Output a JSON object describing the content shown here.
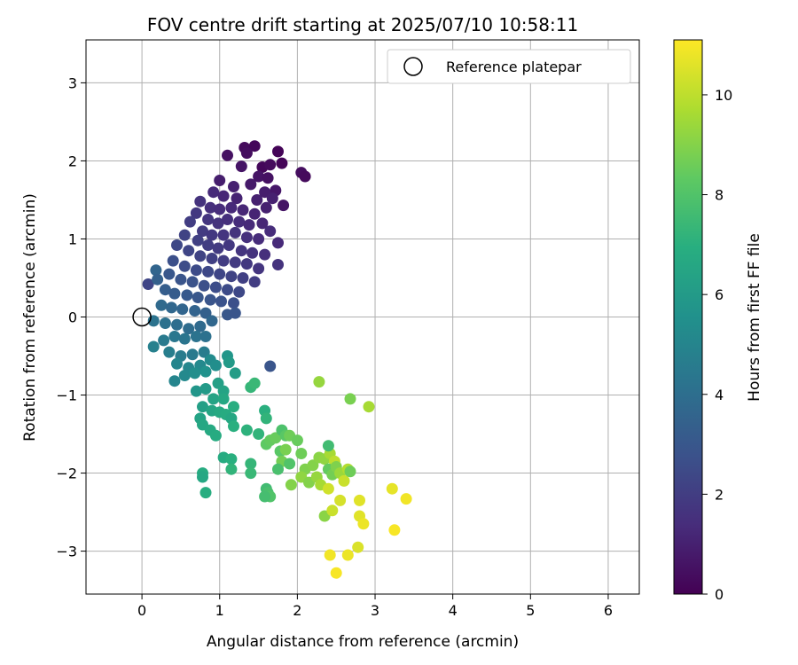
{
  "chart_data": {
    "type": "scatter",
    "title": "FOV centre drift starting at 2025/07/10 10:58:11",
    "xlabel": "Angular distance from reference (arcmin)",
    "ylabel": "Rotation from reference (arcmin)",
    "xlim": [
      -0.72,
      6.4
    ],
    "ylim": [
      -3.55,
      3.55
    ],
    "xticks": [
      "0",
      "1",
      "2",
      "3",
      "4",
      "5",
      "6"
    ],
    "yticks": [
      "3",
      "2",
      "1",
      "0",
      "−1",
      "−2",
      "−3"
    ],
    "grid": true,
    "colormap": "viridis",
    "colorbar": {
      "label": "Hours from first FF file",
      "range": [
        0,
        11.1
      ],
      "ticks": [
        "0",
        "2",
        "4",
        "6",
        "8",
        "10"
      ]
    },
    "legend": {
      "position": "top-right",
      "entries": [
        "Reference platepar"
      ]
    },
    "reference_point": {
      "x": 0,
      "y": 0
    },
    "points_xyc": [
      [
        1.32,
        2.17,
        0.3
      ],
      [
        1.45,
        2.19,
        0.2
      ],
      [
        1.75,
        2.12,
        0.1
      ],
      [
        1.55,
        1.92,
        0.2
      ],
      [
        1.65,
        1.95,
        0.3
      ],
      [
        1.8,
        1.97,
        0.1
      ],
      [
        2.05,
        1.85,
        0.4
      ],
      [
        2.1,
        1.8,
        0.3
      ],
      [
        1.1,
        2.07,
        0.5
      ],
      [
        1.28,
        1.93,
        0.6
      ],
      [
        1.35,
        2.1,
        0.4
      ],
      [
        1.5,
        1.8,
        0.6
      ],
      [
        1.62,
        1.78,
        0.5
      ],
      [
        1.72,
        1.62,
        0.7
      ],
      [
        1.82,
        1.43,
        0.6
      ],
      [
        1.0,
        1.75,
        0.9
      ],
      [
        1.18,
        1.67,
        1.0
      ],
      [
        1.4,
        1.7,
        0.8
      ],
      [
        1.58,
        1.6,
        0.9
      ],
      [
        1.68,
        1.52,
        1.0
      ],
      [
        0.92,
        1.6,
        1.3
      ],
      [
        1.05,
        1.55,
        1.2
      ],
      [
        1.22,
        1.52,
        1.1
      ],
      [
        1.48,
        1.5,
        1.0
      ],
      [
        0.75,
        1.48,
        1.6
      ],
      [
        0.88,
        1.4,
        1.5
      ],
      [
        1.0,
        1.38,
        1.4
      ],
      [
        1.15,
        1.4,
        1.3
      ],
      [
        1.3,
        1.37,
        1.2
      ],
      [
        1.45,
        1.32,
        1.1
      ],
      [
        1.6,
        1.4,
        1.0
      ],
      [
        0.7,
        1.33,
        1.8
      ],
      [
        0.85,
        1.25,
        1.7
      ],
      [
        0.98,
        1.2,
        1.6
      ],
      [
        1.1,
        1.25,
        1.5
      ],
      [
        1.25,
        1.22,
        1.4
      ],
      [
        1.38,
        1.18,
        1.3
      ],
      [
        1.55,
        1.2,
        1.2
      ],
      [
        1.65,
        1.1,
        1.4
      ],
      [
        0.62,
        1.22,
        2.0
      ],
      [
        0.78,
        1.1,
        1.9
      ],
      [
        0.9,
        1.05,
        1.8
      ],
      [
        1.05,
        1.05,
        1.7
      ],
      [
        1.2,
        1.08,
        1.6
      ],
      [
        1.35,
        1.02,
        1.5
      ],
      [
        1.5,
        1.0,
        1.4
      ],
      [
        1.75,
        0.95,
        1.3
      ],
      [
        0.55,
        1.05,
        2.2
      ],
      [
        0.72,
        0.98,
        2.1
      ],
      [
        0.85,
        0.92,
        2.0
      ],
      [
        0.98,
        0.88,
        1.9
      ],
      [
        1.12,
        0.92,
        1.8
      ],
      [
        1.28,
        0.85,
        1.7
      ],
      [
        1.42,
        0.82,
        1.6
      ],
      [
        1.58,
        0.8,
        1.5
      ],
      [
        0.45,
        0.92,
        2.4
      ],
      [
        0.6,
        0.85,
        2.3
      ],
      [
        0.75,
        0.78,
        2.2
      ],
      [
        0.9,
        0.75,
        2.1
      ],
      [
        1.05,
        0.72,
        2.0
      ],
      [
        1.2,
        0.7,
        1.9
      ],
      [
        1.35,
        0.68,
        1.8
      ],
      [
        1.5,
        0.62,
        1.7
      ],
      [
        1.75,
        0.67,
        1.6
      ],
      [
        0.4,
        0.72,
        2.7
      ],
      [
        0.55,
        0.65,
        2.6
      ],
      [
        0.7,
        0.6,
        2.5
      ],
      [
        0.85,
        0.58,
        2.4
      ],
      [
        1.0,
        0.55,
        2.3
      ],
      [
        1.15,
        0.52,
        2.2
      ],
      [
        1.3,
        0.5,
        2.1
      ],
      [
        1.45,
        0.45,
        2.0
      ],
      [
        0.35,
        0.55,
        3.0
      ],
      [
        0.5,
        0.48,
        2.9
      ],
      [
        0.65,
        0.45,
        2.8
      ],
      [
        0.8,
        0.4,
        2.7
      ],
      [
        0.95,
        0.38,
        2.6
      ],
      [
        1.1,
        0.35,
        2.5
      ],
      [
        1.25,
        0.32,
        2.4
      ],
      [
        0.08,
        0.42,
        2.3
      ],
      [
        0.18,
        0.6,
        3.6
      ],
      [
        0.2,
        0.48,
        3.4
      ],
      [
        0.3,
        0.35,
        3.3
      ],
      [
        0.42,
        0.3,
        3.2
      ],
      [
        0.58,
        0.28,
        3.1
      ],
      [
        0.72,
        0.25,
        3.0
      ],
      [
        0.88,
        0.22,
        2.9
      ],
      [
        1.02,
        0.2,
        2.8
      ],
      [
        1.18,
        0.18,
        2.7
      ],
      [
        0.25,
        0.15,
        3.8
      ],
      [
        0.38,
        0.12,
        3.7
      ],
      [
        0.52,
        0.1,
        3.6
      ],
      [
        0.68,
        0.08,
        3.5
      ],
      [
        0.82,
        0.05,
        3.4
      ],
      [
        1.1,
        0.03,
        3.0
      ],
      [
        1.2,
        0.05,
        2.9
      ],
      [
        0.15,
        -0.05,
        4.2
      ],
      [
        0.3,
        -0.08,
        4.1
      ],
      [
        0.45,
        -0.1,
        4.0
      ],
      [
        0.6,
        -0.15,
        3.9
      ],
      [
        0.75,
        -0.12,
        3.8
      ],
      [
        0.9,
        -0.05,
        3.7
      ],
      [
        0.28,
        -0.3,
        4.5
      ],
      [
        0.42,
        -0.25,
        4.4
      ],
      [
        0.55,
        -0.28,
        4.3
      ],
      [
        0.7,
        -0.25,
        4.2
      ],
      [
        0.82,
        -0.25,
        4.1
      ],
      [
        0.15,
        -0.38,
        4.8
      ],
      [
        0.35,
        -0.45,
        4.7
      ],
      [
        0.5,
        -0.5,
        4.6
      ],
      [
        0.65,
        -0.48,
        4.5
      ],
      [
        0.8,
        -0.45,
        4.6
      ],
      [
        0.45,
        -0.6,
        5.0
      ],
      [
        0.6,
        -0.65,
        5.1
      ],
      [
        0.75,
        -0.62,
        5.2
      ],
      [
        0.88,
        -0.55,
        5.3
      ],
      [
        0.95,
        -0.62,
        5.4
      ],
      [
        0.42,
        -0.82,
        5.0
      ],
      [
        0.55,
        -0.75,
        5.2
      ],
      [
        0.68,
        -0.72,
        5.4
      ],
      [
        0.82,
        -0.7,
        5.6
      ],
      [
        1.1,
        -0.5,
        5.8
      ],
      [
        1.12,
        -0.58,
        6.0
      ],
      [
        1.2,
        -0.72,
        6.1
      ],
      [
        1.65,
        -0.63,
        2.9
      ],
      [
        0.7,
        -0.95,
        5.8
      ],
      [
        0.82,
        -0.92,
        6.0
      ],
      [
        0.98,
        -0.85,
        6.2
      ],
      [
        1.05,
        -0.95,
        6.4
      ],
      [
        0.78,
        -1.15,
        6.2
      ],
      [
        0.92,
        -1.05,
        6.4
      ],
      [
        1.05,
        -1.05,
        6.6
      ],
      [
        0.75,
        -1.3,
        6.4
      ],
      [
        0.9,
        -1.2,
        6.5
      ],
      [
        1.0,
        -1.22,
        6.7
      ],
      [
        1.08,
        -1.25,
        6.8
      ],
      [
        1.15,
        -1.3,
        6.6
      ],
      [
        1.18,
        -1.15,
        6.9
      ],
      [
        0.78,
        -1.38,
        6.6
      ],
      [
        0.88,
        -1.45,
        6.7
      ],
      [
        0.95,
        -1.52,
        6.8
      ],
      [
        1.18,
        -1.4,
        7.0
      ],
      [
        1.35,
        -1.45,
        7.1
      ],
      [
        1.5,
        -1.5,
        7.2
      ],
      [
        1.4,
        -0.9,
        7.3
      ],
      [
        1.45,
        -0.85,
        7.4
      ],
      [
        1.58,
        -1.2,
        7.0
      ],
      [
        1.6,
        -1.3,
        7.2
      ],
      [
        0.78,
        -2.0,
        6.8
      ],
      [
        0.78,
        -2.05,
        6.6
      ],
      [
        0.82,
        -2.25,
        6.9
      ],
      [
        1.05,
        -1.8,
        6.8
      ],
      [
        1.15,
        -1.82,
        7.0
      ],
      [
        1.15,
        -1.95,
        7.2
      ],
      [
        1.4,
        -1.88,
        7.3
      ],
      [
        1.4,
        -2.0,
        7.4
      ],
      [
        1.6,
        -2.2,
        7.6
      ],
      [
        1.62,
        -2.25,
        7.8
      ],
      [
        1.65,
        -2.3,
        8.0
      ],
      [
        1.58,
        -2.3,
        7.7
      ],
      [
        1.6,
        -1.63,
        8.3
      ],
      [
        1.65,
        -1.58,
        8.4
      ],
      [
        1.72,
        -1.55,
        8.5
      ],
      [
        1.8,
        -1.45,
        7.9
      ],
      [
        1.85,
        -1.52,
        8.2
      ],
      [
        1.9,
        -1.52,
        8.6
      ],
      [
        1.78,
        -1.72,
        8.2
      ],
      [
        1.85,
        -1.7,
        8.8
      ],
      [
        1.8,
        -1.85,
        8.7
      ],
      [
        1.75,
        -1.95,
        7.8
      ],
      [
        1.9,
        -1.88,
        8.0
      ],
      [
        2.0,
        -1.58,
        8.5
      ],
      [
        2.05,
        -1.75,
        8.6
      ],
      [
        2.1,
        -1.95,
        8.9
      ],
      [
        2.2,
        -1.9,
        9.0
      ],
      [
        2.28,
        -1.8,
        9.1
      ],
      [
        2.35,
        -1.82,
        9.2
      ],
      [
        2.42,
        -1.75,
        9.6
      ],
      [
        2.48,
        -1.85,
        10.0
      ],
      [
        2.4,
        -1.65,
        7.6
      ],
      [
        2.4,
        -1.95,
        8.4
      ],
      [
        2.45,
        -2.02,
        8.7
      ],
      [
        2.5,
        -1.92,
        8.9
      ],
      [
        2.55,
        -2.0,
        9.4
      ],
      [
        2.6,
        -2.1,
        10.2
      ],
      [
        2.65,
        -1.95,
        9.8
      ],
      [
        2.68,
        -1.98,
        8.6
      ],
      [
        2.05,
        -2.05,
        9.2
      ],
      [
        2.15,
        -2.12,
        9.0
      ],
      [
        2.25,
        -2.05,
        9.3
      ],
      [
        2.3,
        -2.15,
        9.6
      ],
      [
        2.4,
        -2.2,
        10.3
      ],
      [
        2.28,
        -0.83,
        9.3
      ],
      [
        2.68,
        -1.05,
        8.8
      ],
      [
        2.92,
        -1.15,
        9.6
      ],
      [
        1.92,
        -2.15,
        9.0
      ],
      [
        2.35,
        -2.55,
        9.1
      ],
      [
        2.45,
        -2.48,
        10.2
      ],
      [
        2.55,
        -2.35,
        10.4
      ],
      [
        2.8,
        -2.35,
        10.6
      ],
      [
        2.8,
        -2.55,
        10.6
      ],
      [
        2.85,
        -2.65,
        10.8
      ],
      [
        2.78,
        -2.95,
        10.5
      ],
      [
        2.42,
        -3.05,
        10.9
      ],
      [
        2.5,
        -3.28,
        11.0
      ],
      [
        2.65,
        -3.05,
        10.8
      ],
      [
        3.22,
        -2.2,
        10.7
      ],
      [
        3.4,
        -2.33,
        10.9
      ],
      [
        3.25,
        -2.73,
        11.0
      ]
    ]
  }
}
